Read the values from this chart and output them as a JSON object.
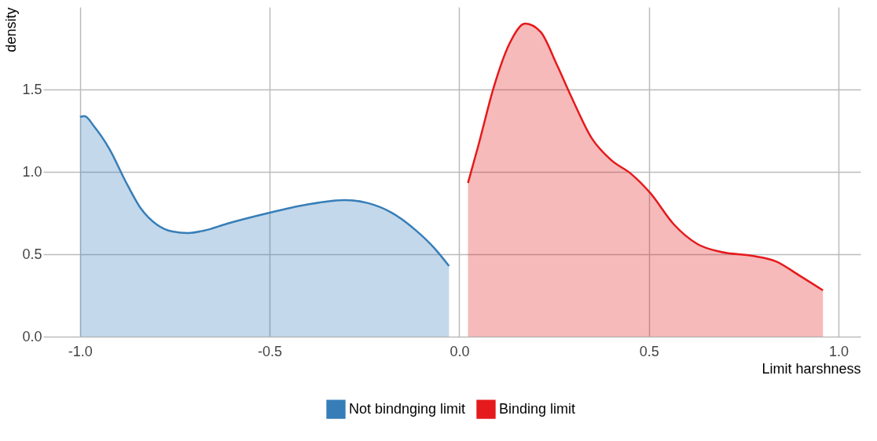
{
  "chart_data": {
    "type": "area",
    "xlabel": "Limit harshness",
    "ylabel": "density",
    "xlim": [
      -1.097,
      1.058
    ],
    "ylim": [
      0,
      2.0
    ],
    "xticks": [
      {
        "value": -1.0,
        "label": "-1.0"
      },
      {
        "value": -0.5,
        "label": "-0.5"
      },
      {
        "value": 0,
        "label": "0.0"
      },
      {
        "value": 0.5,
        "label": "0.5"
      },
      {
        "value": 1.0,
        "label": "1.0"
      }
    ],
    "yticks": [
      {
        "value": 0,
        "label": "0.0"
      },
      {
        "value": 0.5,
        "label": "0.5"
      },
      {
        "value": 1.0,
        "label": "1.0"
      },
      {
        "value": 1.5,
        "label": "1.5"
      }
    ],
    "grid": true,
    "legend": "bottom",
    "series": [
      {
        "name": "Not bindnging limit",
        "color": "#377eb8",
        "x": [
          -1.0,
          -0.988,
          -0.963,
          -0.921,
          -0.88,
          -0.839,
          -0.798,
          -0.756,
          -0.715,
          -0.674,
          -0.612,
          -0.508,
          -0.405,
          -0.302,
          -0.24,
          -0.178,
          -0.116,
          -0.064,
          -0.027
        ],
        "values": [
          1.333,
          1.338,
          1.276,
          1.133,
          0.943,
          0.776,
          0.681,
          0.638,
          0.629,
          0.643,
          0.686,
          0.748,
          0.8,
          0.829,
          0.81,
          0.752,
          0.648,
          0.533,
          0.429
        ]
      },
      {
        "name": "Binding limit",
        "color": "#e41a1c",
        "x": [
          0.023,
          0.05,
          0.091,
          0.132,
          0.174,
          0.215,
          0.256,
          0.298,
          0.349,
          0.401,
          0.452,
          0.504,
          0.566,
          0.628,
          0.69,
          0.773,
          0.835,
          0.897,
          0.959
        ],
        "values": [
          0.933,
          1.157,
          1.514,
          1.776,
          1.9,
          1.848,
          1.657,
          1.443,
          1.205,
          1.071,
          0.99,
          0.871,
          0.681,
          0.562,
          0.514,
          0.49,
          0.457,
          0.371,
          0.281
        ]
      }
    ]
  }
}
